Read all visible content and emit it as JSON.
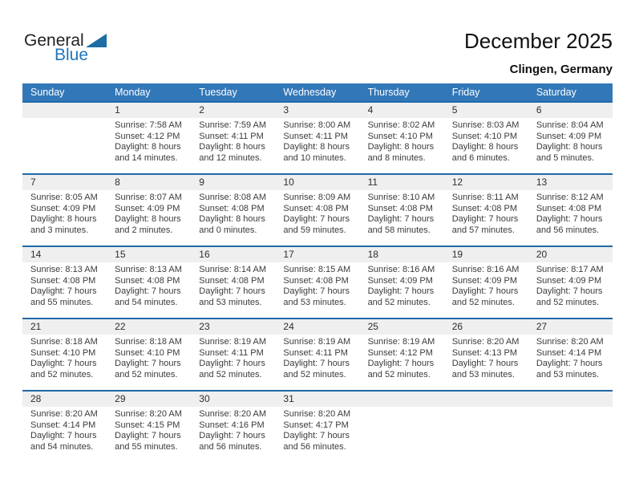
{
  "logo": {
    "text_general": "General",
    "text_blue": "Blue"
  },
  "header": {
    "title": "December 2025",
    "subtitle": "Clingen, Germany"
  },
  "colors": {
    "header_bg": "#3277b8",
    "row_border": "#2069a8",
    "number_band_bg": "#efefef",
    "logo_blue": "#2176bc",
    "logo_triangle": "#1c6ea4",
    "body_text": "#3b3b3b"
  },
  "calendar": {
    "weekday_headers": [
      "Sunday",
      "Monday",
      "Tuesday",
      "Wednesday",
      "Thursday",
      "Friday",
      "Saturday"
    ],
    "weeks": [
      [
        null,
        {
          "day": "1",
          "sunrise": "Sunrise: 7:58 AM",
          "sunset": "Sunset: 4:12 PM",
          "daylight_line1": "Daylight: 8 hours",
          "daylight_line2": "and 14 minutes."
        },
        {
          "day": "2",
          "sunrise": "Sunrise: 7:59 AM",
          "sunset": "Sunset: 4:11 PM",
          "daylight_line1": "Daylight: 8 hours",
          "daylight_line2": "and 12 minutes."
        },
        {
          "day": "3",
          "sunrise": "Sunrise: 8:00 AM",
          "sunset": "Sunset: 4:11 PM",
          "daylight_line1": "Daylight: 8 hours",
          "daylight_line2": "and 10 minutes."
        },
        {
          "day": "4",
          "sunrise": "Sunrise: 8:02 AM",
          "sunset": "Sunset: 4:10 PM",
          "daylight_line1": "Daylight: 8 hours",
          "daylight_line2": "and 8 minutes."
        },
        {
          "day": "5",
          "sunrise": "Sunrise: 8:03 AM",
          "sunset": "Sunset: 4:10 PM",
          "daylight_line1": "Daylight: 8 hours",
          "daylight_line2": "and 6 minutes."
        },
        {
          "day": "6",
          "sunrise": "Sunrise: 8:04 AM",
          "sunset": "Sunset: 4:09 PM",
          "daylight_line1": "Daylight: 8 hours",
          "daylight_line2": "and 5 minutes."
        }
      ],
      [
        {
          "day": "7",
          "sunrise": "Sunrise: 8:05 AM",
          "sunset": "Sunset: 4:09 PM",
          "daylight_line1": "Daylight: 8 hours",
          "daylight_line2": "and 3 minutes."
        },
        {
          "day": "8",
          "sunrise": "Sunrise: 8:07 AM",
          "sunset": "Sunset: 4:09 PM",
          "daylight_line1": "Daylight: 8 hours",
          "daylight_line2": "and 2 minutes."
        },
        {
          "day": "9",
          "sunrise": "Sunrise: 8:08 AM",
          "sunset": "Sunset: 4:08 PM",
          "daylight_line1": "Daylight: 8 hours",
          "daylight_line2": "and 0 minutes."
        },
        {
          "day": "10",
          "sunrise": "Sunrise: 8:09 AM",
          "sunset": "Sunset: 4:08 PM",
          "daylight_line1": "Daylight: 7 hours",
          "daylight_line2": "and 59 minutes."
        },
        {
          "day": "11",
          "sunrise": "Sunrise: 8:10 AM",
          "sunset": "Sunset: 4:08 PM",
          "daylight_line1": "Daylight: 7 hours",
          "daylight_line2": "and 58 minutes."
        },
        {
          "day": "12",
          "sunrise": "Sunrise: 8:11 AM",
          "sunset": "Sunset: 4:08 PM",
          "daylight_line1": "Daylight: 7 hours",
          "daylight_line2": "and 57 minutes."
        },
        {
          "day": "13",
          "sunrise": "Sunrise: 8:12 AM",
          "sunset": "Sunset: 4:08 PM",
          "daylight_line1": "Daylight: 7 hours",
          "daylight_line2": "and 56 minutes."
        }
      ],
      [
        {
          "day": "14",
          "sunrise": "Sunrise: 8:13 AM",
          "sunset": "Sunset: 4:08 PM",
          "daylight_line1": "Daylight: 7 hours",
          "daylight_line2": "and 55 minutes."
        },
        {
          "day": "15",
          "sunrise": "Sunrise: 8:13 AM",
          "sunset": "Sunset: 4:08 PM",
          "daylight_line1": "Daylight: 7 hours",
          "daylight_line2": "and 54 minutes."
        },
        {
          "day": "16",
          "sunrise": "Sunrise: 8:14 AM",
          "sunset": "Sunset: 4:08 PM",
          "daylight_line1": "Daylight: 7 hours",
          "daylight_line2": "and 53 minutes."
        },
        {
          "day": "17",
          "sunrise": "Sunrise: 8:15 AM",
          "sunset": "Sunset: 4:08 PM",
          "daylight_line1": "Daylight: 7 hours",
          "daylight_line2": "and 53 minutes."
        },
        {
          "day": "18",
          "sunrise": "Sunrise: 8:16 AM",
          "sunset": "Sunset: 4:09 PM",
          "daylight_line1": "Daylight: 7 hours",
          "daylight_line2": "and 52 minutes."
        },
        {
          "day": "19",
          "sunrise": "Sunrise: 8:16 AM",
          "sunset": "Sunset: 4:09 PM",
          "daylight_line1": "Daylight: 7 hours",
          "daylight_line2": "and 52 minutes."
        },
        {
          "day": "20",
          "sunrise": "Sunrise: 8:17 AM",
          "sunset": "Sunset: 4:09 PM",
          "daylight_line1": "Daylight: 7 hours",
          "daylight_line2": "and 52 minutes."
        }
      ],
      [
        {
          "day": "21",
          "sunrise": "Sunrise: 8:18 AM",
          "sunset": "Sunset: 4:10 PM",
          "daylight_line1": "Daylight: 7 hours",
          "daylight_line2": "and 52 minutes."
        },
        {
          "day": "22",
          "sunrise": "Sunrise: 8:18 AM",
          "sunset": "Sunset: 4:10 PM",
          "daylight_line1": "Daylight: 7 hours",
          "daylight_line2": "and 52 minutes."
        },
        {
          "day": "23",
          "sunrise": "Sunrise: 8:19 AM",
          "sunset": "Sunset: 4:11 PM",
          "daylight_line1": "Daylight: 7 hours",
          "daylight_line2": "and 52 minutes."
        },
        {
          "day": "24",
          "sunrise": "Sunrise: 8:19 AM",
          "sunset": "Sunset: 4:11 PM",
          "daylight_line1": "Daylight: 7 hours",
          "daylight_line2": "and 52 minutes."
        },
        {
          "day": "25",
          "sunrise": "Sunrise: 8:19 AM",
          "sunset": "Sunset: 4:12 PM",
          "daylight_line1": "Daylight: 7 hours",
          "daylight_line2": "and 52 minutes."
        },
        {
          "day": "26",
          "sunrise": "Sunrise: 8:20 AM",
          "sunset": "Sunset: 4:13 PM",
          "daylight_line1": "Daylight: 7 hours",
          "daylight_line2": "and 53 minutes."
        },
        {
          "day": "27",
          "sunrise": "Sunrise: 8:20 AM",
          "sunset": "Sunset: 4:14 PM",
          "daylight_line1": "Daylight: 7 hours",
          "daylight_line2": "and 53 minutes."
        }
      ],
      [
        {
          "day": "28",
          "sunrise": "Sunrise: 8:20 AM",
          "sunset": "Sunset: 4:14 PM",
          "daylight_line1": "Daylight: 7 hours",
          "daylight_line2": "and 54 minutes."
        },
        {
          "day": "29",
          "sunrise": "Sunrise: 8:20 AM",
          "sunset": "Sunset: 4:15 PM",
          "daylight_line1": "Daylight: 7 hours",
          "daylight_line2": "and 55 minutes."
        },
        {
          "day": "30",
          "sunrise": "Sunrise: 8:20 AM",
          "sunset": "Sunset: 4:16 PM",
          "daylight_line1": "Daylight: 7 hours",
          "daylight_line2": "and 56 minutes."
        },
        {
          "day": "31",
          "sunrise": "Sunrise: 8:20 AM",
          "sunset": "Sunset: 4:17 PM",
          "daylight_line1": "Daylight: 7 hours",
          "daylight_line2": "and 56 minutes."
        },
        null,
        null,
        null
      ]
    ]
  }
}
